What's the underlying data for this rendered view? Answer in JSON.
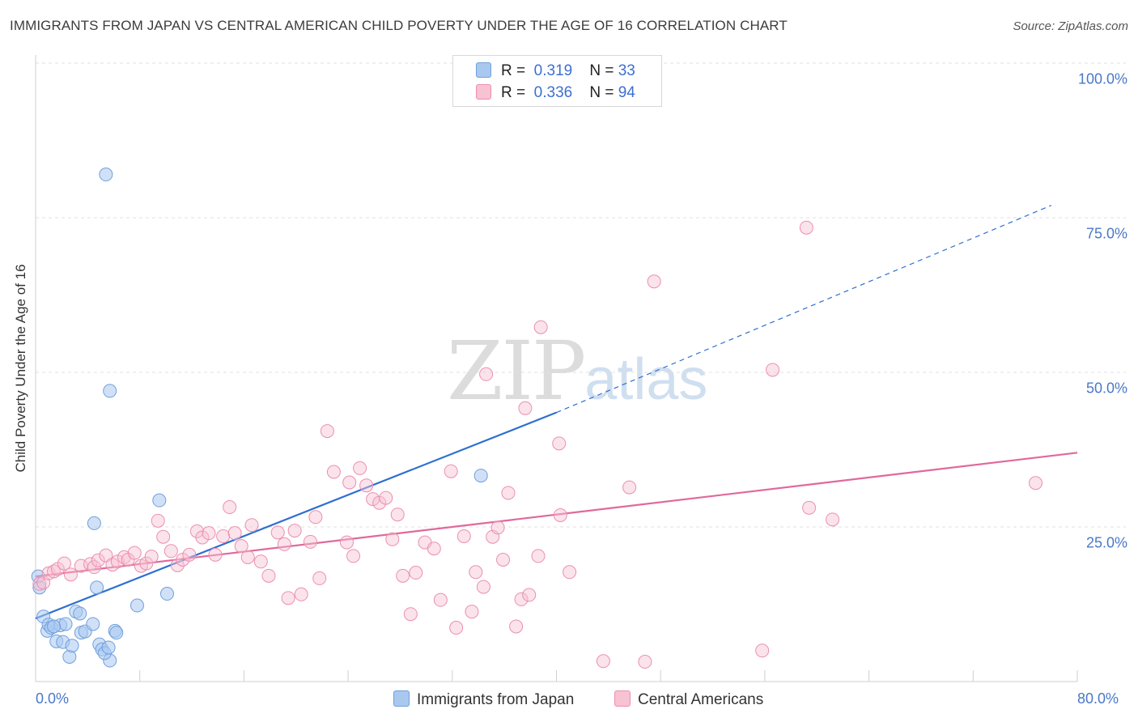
{
  "header": {
    "title": "IMMIGRANTS FROM JAPAN VS CENTRAL AMERICAN CHILD POVERTY UNDER THE AGE OF 16 CORRELATION CHART",
    "source": "Source: ZipAtlas.com"
  },
  "watermark": {
    "zip": "ZIP",
    "atlas": "atlas"
  },
  "legend": {
    "rows": [
      {
        "r_label": "R =",
        "r_value": "0.319",
        "n_label": "N =",
        "n_value": "33"
      },
      {
        "r_label": "R =",
        "r_value": "0.336",
        "n_label": "N =",
        "n_value": "94"
      }
    ]
  },
  "bottom_legend": {
    "japan": "Immigrants from Japan",
    "central": "Central Americans"
  },
  "colors": {
    "japan_fill": "#a9c8f0",
    "japan_stroke": "#6f9fdd",
    "japan_line": "#2f6fd0",
    "central_fill": "#f7c2d2",
    "central_stroke": "#eb8fae",
    "central_line": "#e0699a",
    "grid": "#e2e2e2",
    "tick_text": "#4a78c8"
  },
  "chart_data": {
    "type": "scatter",
    "title": "IMMIGRANTS FROM JAPAN VS CENTRAL AMERICAN CHILD POVERTY UNDER THE AGE OF 16 CORRELATION CHART",
    "xlabel": "",
    "ylabel": "Child Poverty Under the Age of 16",
    "xlim": [
      0,
      80
    ],
    "ylim": [
      0,
      100
    ],
    "x_tick_labels": [
      "0.0%",
      "80.0%"
    ],
    "y_ticks": [
      25,
      50,
      75,
      100
    ],
    "y_tick_labels": [
      "25.0%",
      "50.0%",
      "75.0%",
      "100.0%"
    ],
    "grid": true,
    "legend_position": "top-center",
    "series": [
      {
        "name": "Immigrants from Japan",
        "r": 0.319,
        "n": 33,
        "trend": {
          "x0": 0,
          "y0": 10.2,
          "x1": 40,
          "y1": 43.5,
          "dashed_to_x": 78,
          "dashed_to_y": 77
        },
        "points": [
          [
            0.2,
            17.0
          ],
          [
            0.3,
            15.2
          ],
          [
            0.6,
            10.5
          ],
          [
            0.9,
            8.2
          ],
          [
            1.0,
            9.2
          ],
          [
            1.2,
            8.7
          ],
          [
            1.6,
            6.5
          ],
          [
            1.9,
            9.1
          ],
          [
            2.1,
            6.4
          ],
          [
            2.3,
            9.3
          ],
          [
            2.6,
            4.0
          ],
          [
            2.8,
            5.8
          ],
          [
            3.1,
            11.3
          ],
          [
            3.4,
            11.0
          ],
          [
            3.5,
            7.9
          ],
          [
            3.8,
            8.1
          ],
          [
            4.4,
            9.3
          ],
          [
            4.5,
            25.6
          ],
          [
            4.7,
            15.2
          ],
          [
            4.9,
            6.0
          ],
          [
            5.1,
            5.2
          ],
          [
            5.4,
            82.0
          ],
          [
            5.7,
            47.0
          ],
          [
            5.7,
            3.4
          ],
          [
            5.3,
            4.6
          ],
          [
            6.1,
            8.2
          ],
          [
            6.2,
            7.9
          ],
          [
            7.8,
            12.3
          ],
          [
            9.5,
            29.3
          ],
          [
            10.1,
            14.2
          ],
          [
            34.2,
            33.3
          ],
          [
            5.6,
            5.5
          ],
          [
            1.4,
            8.9
          ]
        ]
      },
      {
        "name": "Central Americans",
        "r": 0.336,
        "n": 94,
        "trend": {
          "x0": 0,
          "y0": 17.0,
          "x1": 80,
          "y1": 37.0
        },
        "points": [
          [
            0.3,
            15.8
          ],
          [
            0.6,
            16.0
          ],
          [
            1.0,
            17.5
          ],
          [
            1.4,
            17.8
          ],
          [
            1.7,
            18.2
          ],
          [
            2.2,
            19.1
          ],
          [
            2.7,
            17.3
          ],
          [
            3.5,
            18.7
          ],
          [
            4.2,
            19.0
          ],
          [
            4.5,
            18.5
          ],
          [
            4.8,
            19.6
          ],
          [
            5.4,
            20.4
          ],
          [
            5.9,
            18.9
          ],
          [
            6.3,
            19.4
          ],
          [
            6.8,
            20.1
          ],
          [
            7.1,
            19.7
          ],
          [
            7.6,
            20.8
          ],
          [
            8.1,
            18.7
          ],
          [
            8.5,
            19.1
          ],
          [
            8.9,
            20.2
          ],
          [
            9.4,
            26.0
          ],
          [
            9.8,
            23.4
          ],
          [
            10.4,
            21.1
          ],
          [
            10.9,
            18.8
          ],
          [
            11.3,
            19.7
          ],
          [
            11.8,
            20.5
          ],
          [
            12.4,
            24.3
          ],
          [
            12.8,
            23.3
          ],
          [
            13.3,
            24.0
          ],
          [
            13.8,
            20.5
          ],
          [
            14.4,
            23.5
          ],
          [
            14.9,
            28.2
          ],
          [
            15.3,
            24.0
          ],
          [
            15.8,
            21.9
          ],
          [
            16.3,
            20.1
          ],
          [
            16.6,
            25.3
          ],
          [
            17.3,
            19.4
          ],
          [
            17.9,
            17.1
          ],
          [
            18.6,
            24.1
          ],
          [
            19.1,
            22.2
          ],
          [
            19.4,
            13.5
          ],
          [
            19.9,
            24.4
          ],
          [
            20.4,
            14.1
          ],
          [
            21.1,
            22.6
          ],
          [
            21.5,
            26.6
          ],
          [
            21.8,
            16.7
          ],
          [
            22.4,
            40.5
          ],
          [
            22.9,
            33.9
          ],
          [
            23.9,
            22.5
          ],
          [
            24.1,
            32.2
          ],
          [
            24.4,
            20.3
          ],
          [
            24.9,
            34.5
          ],
          [
            25.4,
            31.7
          ],
          [
            25.9,
            29.5
          ],
          [
            26.4,
            28.9
          ],
          [
            26.9,
            29.7
          ],
          [
            27.4,
            23.0
          ],
          [
            27.8,
            27.0
          ],
          [
            28.2,
            17.1
          ],
          [
            28.8,
            10.9
          ],
          [
            29.2,
            17.6
          ],
          [
            29.9,
            22.5
          ],
          [
            30.6,
            21.5
          ],
          [
            31.1,
            13.2
          ],
          [
            31.9,
            34.0
          ],
          [
            32.3,
            8.7
          ],
          [
            32.9,
            23.5
          ],
          [
            33.5,
            11.3
          ],
          [
            33.8,
            17.7
          ],
          [
            34.4,
            15.3
          ],
          [
            34.6,
            49.7
          ],
          [
            35.1,
            23.4
          ],
          [
            35.5,
            24.9
          ],
          [
            35.9,
            19.7
          ],
          [
            36.3,
            30.5
          ],
          [
            36.9,
            8.9
          ],
          [
            37.3,
            13.3
          ],
          [
            37.6,
            44.2
          ],
          [
            37.9,
            14.0
          ],
          [
            38.6,
            20.3
          ],
          [
            38.8,
            57.3
          ],
          [
            40.2,
            38.5
          ],
          [
            40.3,
            26.9
          ],
          [
            41.0,
            17.7
          ],
          [
            43.6,
            3.3
          ],
          [
            45.6,
            31.4
          ],
          [
            46.8,
            3.2
          ],
          [
            47.5,
            64.7
          ],
          [
            55.8,
            5.0
          ],
          [
            56.6,
            50.4
          ],
          [
            59.2,
            73.4
          ],
          [
            59.4,
            28.1
          ],
          [
            61.2,
            26.2
          ],
          [
            76.8,
            32.1
          ]
        ]
      }
    ]
  }
}
